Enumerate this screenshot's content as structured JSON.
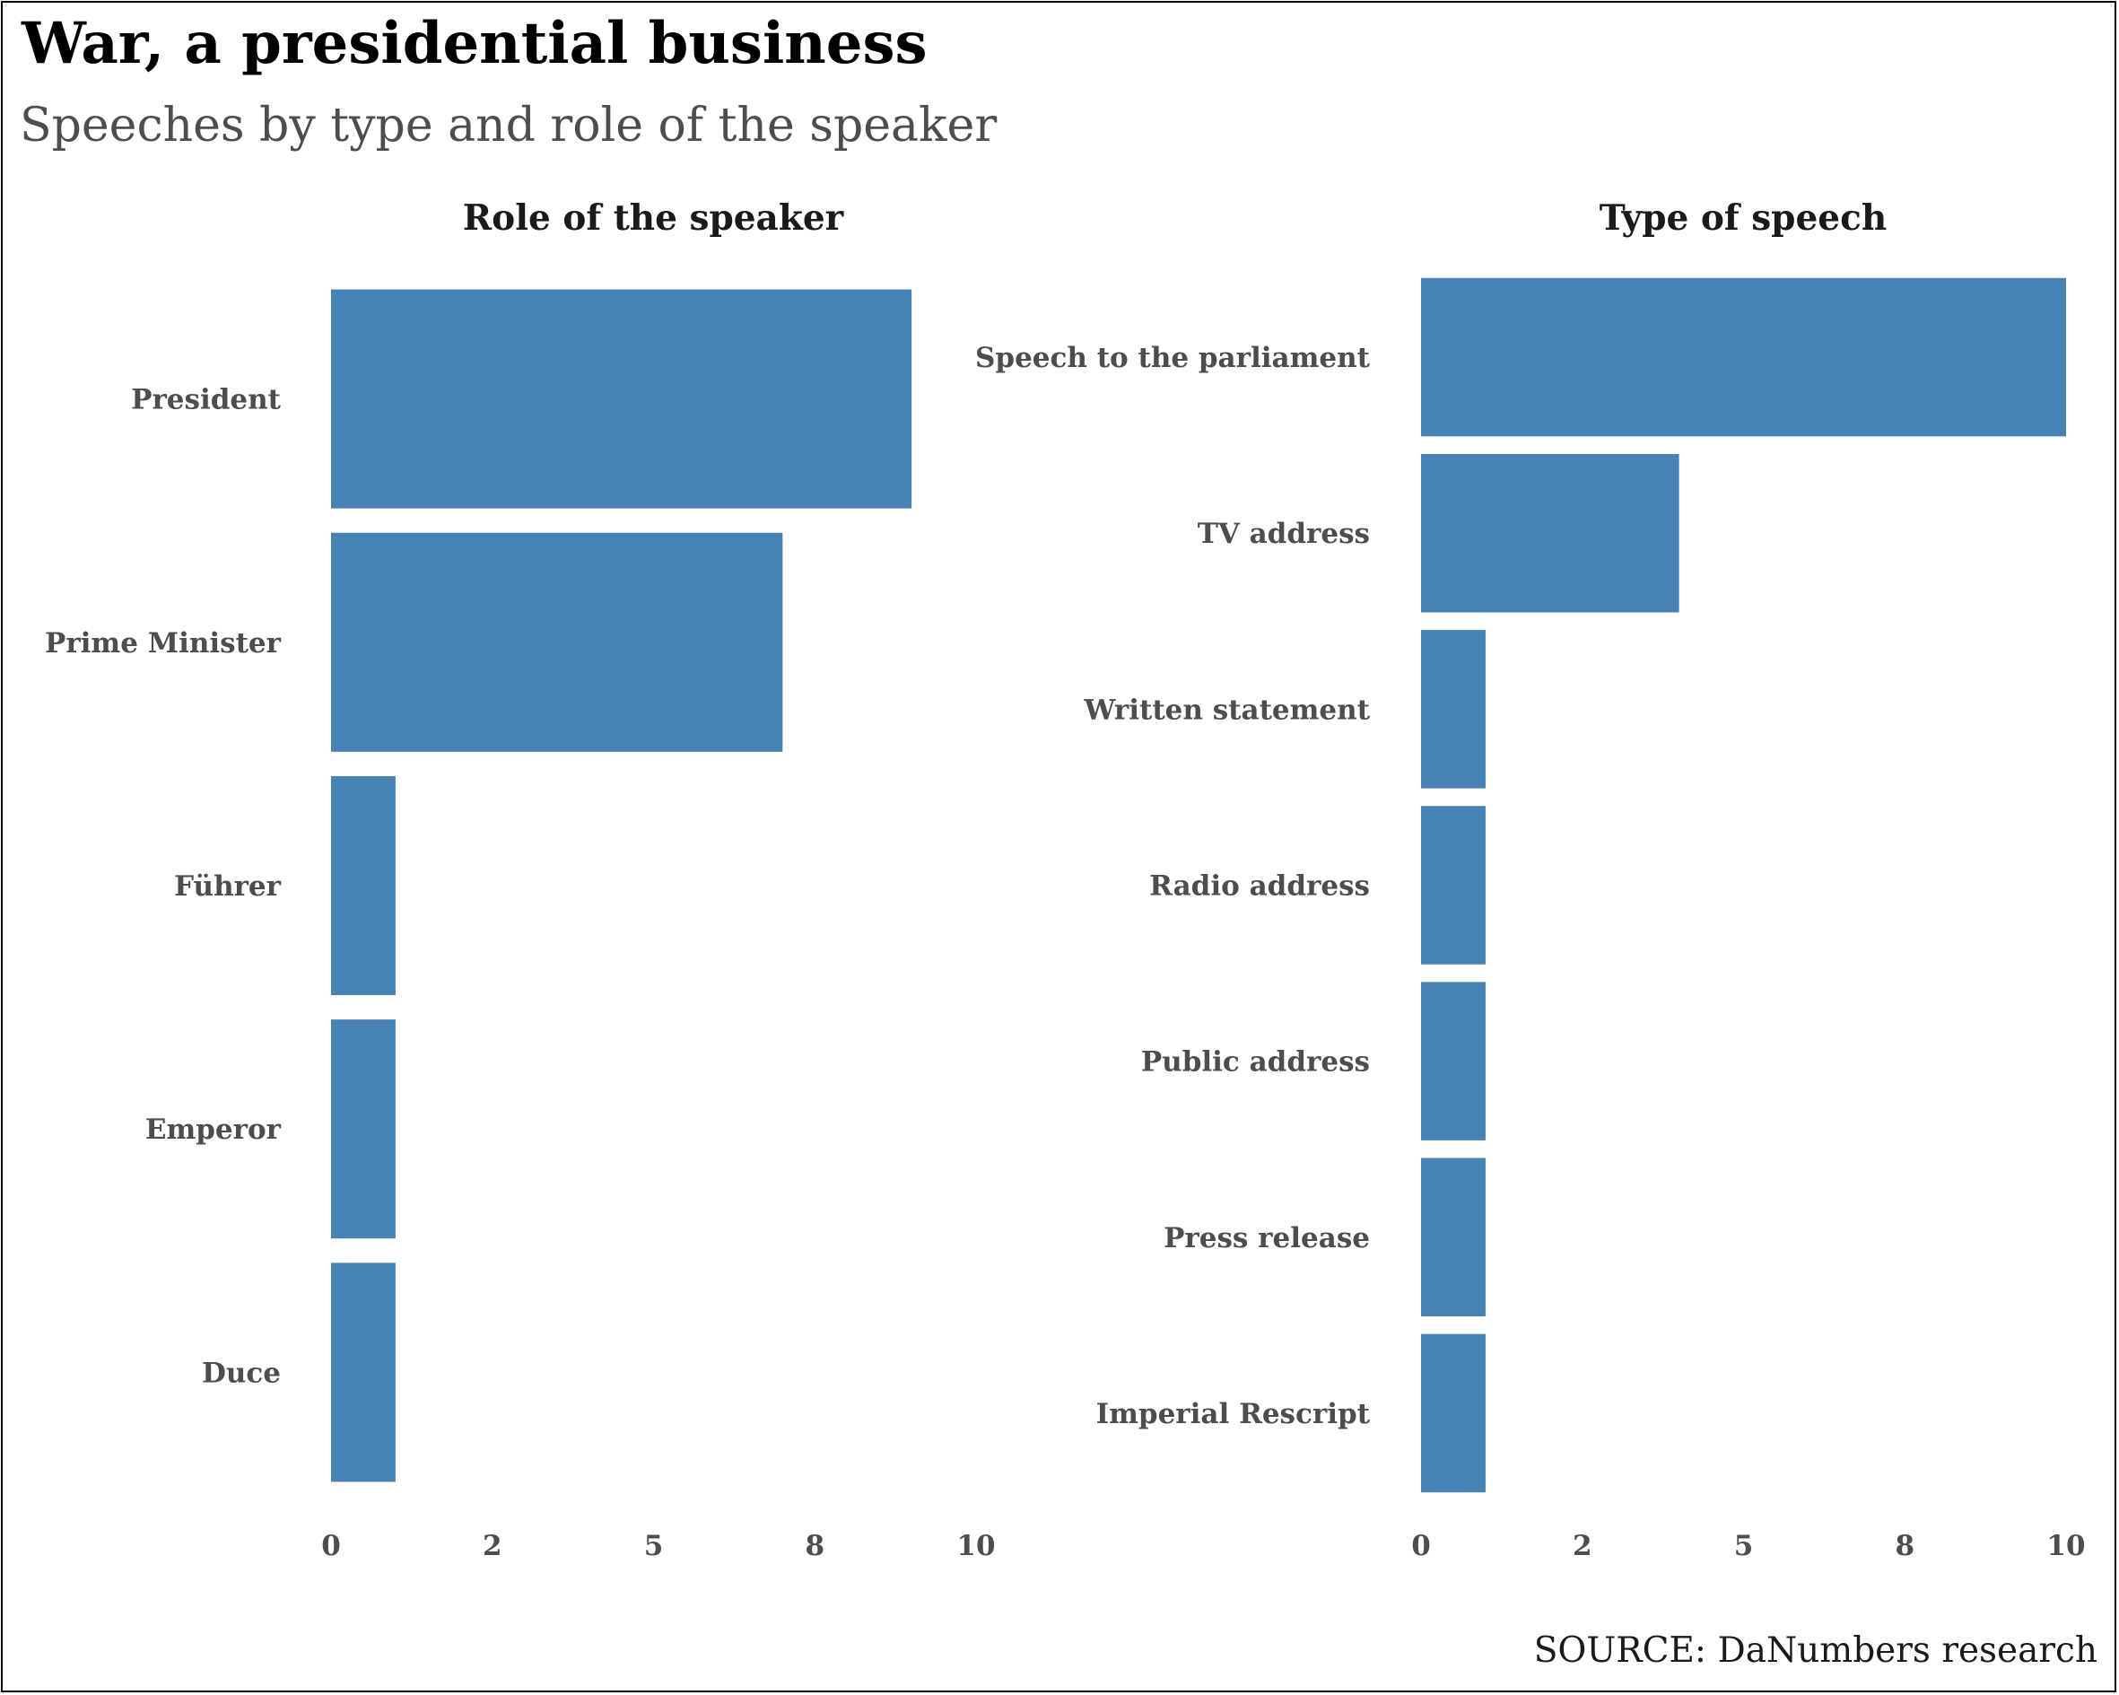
{
  "title": "War, a presidential business",
  "subtitle": "Speeches by type and role of the speaker",
  "caption": "SOURCE: DaNumbers research",
  "bar_color": "#4682b4",
  "chart_data": [
    {
      "type": "bar",
      "orientation": "horizontal",
      "title": "Role of the speaker",
      "categories": [
        "President",
        "Prime Minister",
        "Führer",
        "Emperor",
        "Duce"
      ],
      "values": [
        9,
        7,
        1,
        1,
        1
      ],
      "xlim": [
        0,
        10
      ],
      "ticks": [
        0,
        2.5,
        5,
        7.5,
        10
      ],
      "tick_labels": [
        "0",
        "2",
        "5",
        "8",
        "10"
      ],
      "xlabel": "",
      "ylabel": ""
    },
    {
      "type": "bar",
      "orientation": "horizontal",
      "title": "Type of speech",
      "categories": [
        "Speech to the parliament",
        "TV address",
        "Written statement",
        "Radio address",
        "Public address",
        "Press release",
        "Imperial Rescript"
      ],
      "values": [
        10,
        4,
        1,
        1,
        1,
        1,
        1
      ],
      "xlim": [
        0,
        10
      ],
      "ticks": [
        0,
        2.5,
        5,
        7.5,
        10
      ],
      "tick_labels": [
        "0",
        "2",
        "5",
        "8",
        "10"
      ],
      "xlabel": "",
      "ylabel": ""
    }
  ]
}
